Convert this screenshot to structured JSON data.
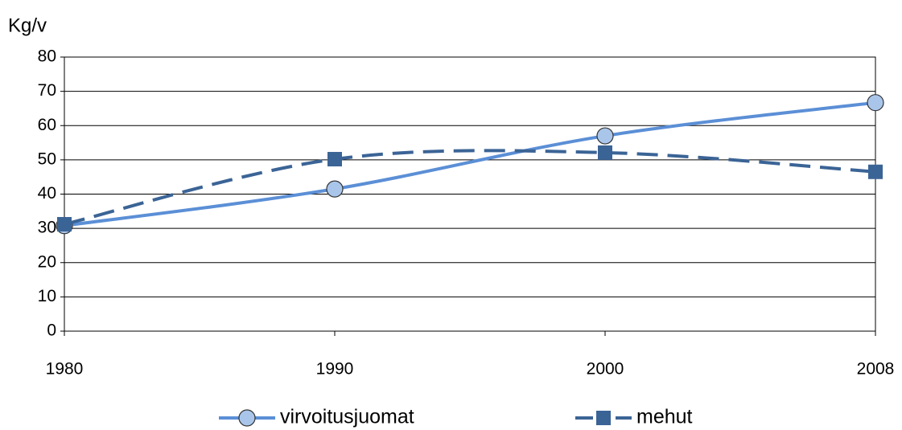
{
  "chart_data": {
    "type": "line",
    "y_label": "Kg/v",
    "categories": [
      "1980",
      "1990",
      "2000",
      "2008"
    ],
    "series": [
      {
        "name": "virvoitusjuomat",
        "color": "#5b8fd6",
        "marker": "circle",
        "dashed": false,
        "values": [
          30.8,
          41.5,
          57.0,
          66.7
        ]
      },
      {
        "name": "mehut",
        "color": "#3b6496",
        "marker": "square",
        "dashed": true,
        "values": [
          31.2,
          50.2,
          52.1,
          46.5
        ]
      }
    ],
    "ylim": [
      0,
      80
    ],
    "yticks": [
      0,
      10,
      20,
      30,
      40,
      50,
      60,
      70,
      80
    ],
    "grid": true,
    "smooth": true,
    "legend": "bottom"
  }
}
